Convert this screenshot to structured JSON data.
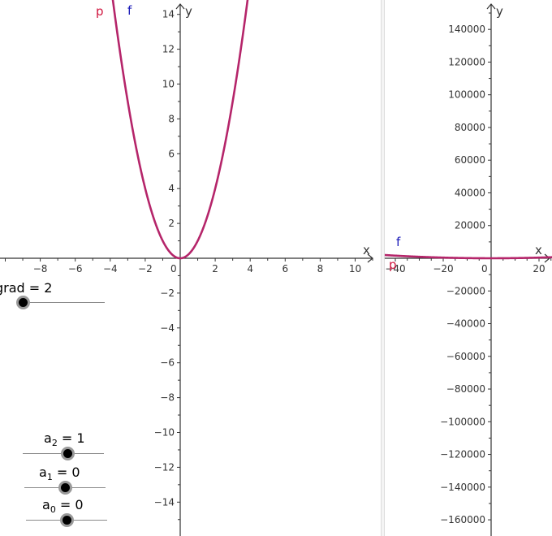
{
  "graphics_left": {
    "x_axis_name": "x",
    "y_axis_name": "y",
    "x_ticks": [
      -8,
      -6,
      -4,
      -2,
      0,
      2,
      4,
      6,
      8,
      10
    ],
    "y_ticks": [
      -14,
      -12,
      -10,
      -8,
      -6,
      -4,
      -2,
      2,
      4,
      6,
      8,
      10,
      12,
      14
    ],
    "x_tick_labels": [
      "−8",
      "−6",
      "−4",
      "−2",
      "0",
      "2",
      "4",
      "6",
      "8",
      "10"
    ],
    "y_tick_labels": [
      "−14",
      "−12",
      "−10",
      "−8",
      "−6",
      "−4",
      "−2",
      "2",
      "4",
      "6",
      "8",
      "10",
      "12",
      "14"
    ],
    "origin_label": "0"
  },
  "graphics_right": {
    "x_axis_name": "x",
    "y_axis_name": "y",
    "x_ticks": [
      -40,
      -20,
      0,
      20
    ],
    "x_tick_labels": [
      "−40",
      "−20",
      "0",
      "20"
    ],
    "y_ticks": [
      -160000,
      -140000,
      -120000,
      -100000,
      -80000,
      -60000,
      -40000,
      -20000,
      20000,
      40000,
      60000,
      80000,
      100000,
      120000,
      140000
    ],
    "y_tick_labels": [
      "−160000",
      "−140000",
      "−120000",
      "−100000",
      "−80000",
      "−60000",
      "−40000",
      "−20000",
      "20000",
      "40000",
      "60000",
      "80000",
      "100000",
      "120000",
      "140000"
    ]
  },
  "functions": {
    "p": {
      "name": "p",
      "color": "#d0163f"
    },
    "f": {
      "name": "f",
      "color": "#1a1ab8"
    },
    "curve_color": "#b5256a"
  },
  "sliders": {
    "grad": {
      "label": "grad = 2",
      "value": 2
    },
    "a2": {
      "prefix": "a",
      "sub": "2",
      "suffix": " = 1",
      "value": 1
    },
    "a1": {
      "prefix": "a",
      "sub": "1",
      "suffix": " = 0",
      "value": 0
    },
    "a0": {
      "prefix": "a",
      "sub": "0",
      "suffix": " = 0",
      "value": 0
    }
  }
}
